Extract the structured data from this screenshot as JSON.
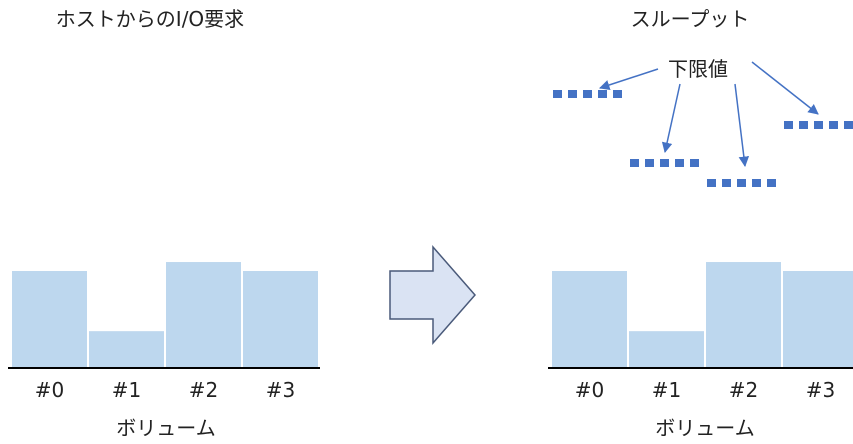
{
  "left_panel": {
    "title": "ホストからのI/O要求",
    "volumes": [
      {
        "label": "#0",
        "level": 0.75
      },
      {
        "label": "#1",
        "level": 0.28
      },
      {
        "label": "#2",
        "level": 0.82
      },
      {
        "label": "#3",
        "level": 0.75
      }
    ],
    "axis_label": "ボリューム"
  },
  "right_panel": {
    "title": "スループット",
    "callout_label": "下限値",
    "volumes": [
      {
        "label": "#0",
        "level": 0.75
      },
      {
        "label": "#1",
        "level": 0.28
      },
      {
        "label": "#2",
        "level": 0.82
      },
      {
        "label": "#3",
        "level": 0.75
      }
    ],
    "axis_label": "ボリューム"
  },
  "colors": {
    "bar_fill": "#bdd7ee",
    "marker": "#4472c4",
    "arrow_fill": "#dae3f3",
    "arrow_stroke": "#4a5a7a",
    "axis": "#000000"
  }
}
